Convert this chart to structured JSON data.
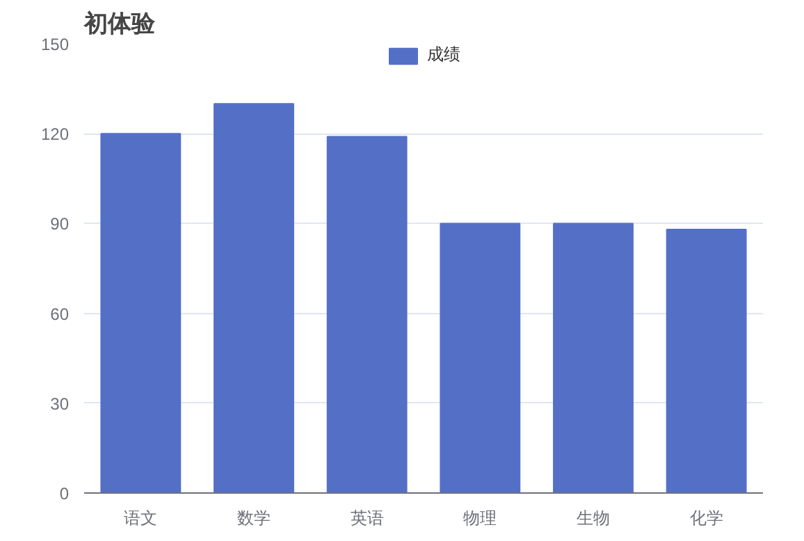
{
  "chart_data": {
    "type": "bar",
    "title": "初体验",
    "categories": [
      "语文",
      "数学",
      "英语",
      "物理",
      "生物",
      "化学"
    ],
    "series": [
      {
        "name": "成绩",
        "color": "#5470c6",
        "values": [
          120,
          130,
          119,
          90,
          90,
          88
        ]
      }
    ],
    "ylim": [
      0,
      150
    ],
    "yticks": [
      0,
      30,
      60,
      90,
      120,
      150
    ],
    "grid": "y",
    "legend": "top"
  }
}
